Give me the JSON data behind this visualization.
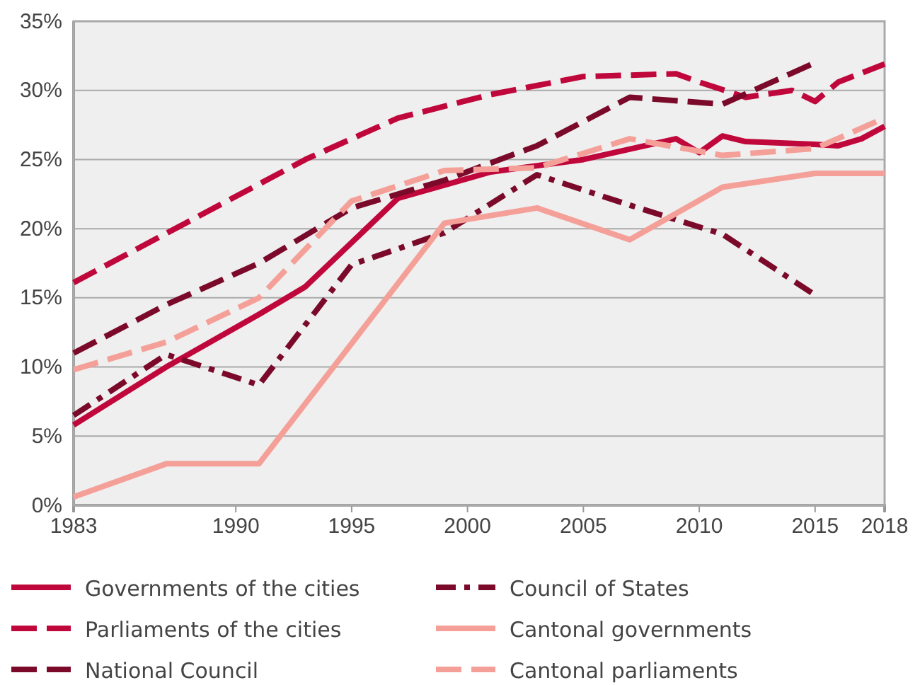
{
  "chart_data": {
    "type": "line",
    "xlim": [
      1983,
      2018
    ],
    "ylim": [
      0,
      35
    ],
    "xticks": [
      1983,
      1990,
      1995,
      2000,
      2005,
      2010,
      2015,
      2018
    ],
    "yticks": [
      {
        "value": 0,
        "label": "0%"
      },
      {
        "value": 5,
        "label": "5%"
      },
      {
        "value": 10,
        "label": "10%"
      },
      {
        "value": 15,
        "label": "15%"
      },
      {
        "value": 20,
        "label": "20%"
      },
      {
        "value": 25,
        "label": "25%"
      },
      {
        "value": 30,
        "label": "30%"
      },
      {
        "value": 35,
        "label": "35%"
      }
    ],
    "grid": "y",
    "legend": "bottom",
    "marker": "none",
    "series": [
      {
        "name": "Governments of the cities",
        "color": "#c0073c",
        "line_style": "solid",
        "x": [
          1983,
          1987,
          1991,
          1993,
          1997,
          2001,
          2005,
          2009,
          2010,
          2011,
          2012,
          2015,
          2016,
          2017,
          2018
        ],
        "values": [
          5.8,
          10,
          13.8,
          15.8,
          22.2,
          24.1,
          25,
          26.5,
          25.5,
          26.7,
          26.3,
          26.1,
          26,
          26.5,
          27.4
        ]
      },
      {
        "name": "Parliaments of the cities",
        "color": "#c0073c",
        "line_style": "dashed",
        "x": [
          1983,
          1993,
          1997,
          2001,
          2005,
          2009,
          2010,
          2012,
          2014,
          2015,
          2016,
          2018
        ],
        "values": [
          16.1,
          25,
          28,
          29.7,
          31,
          31.2,
          30.6,
          29.5,
          30,
          29.2,
          30.6,
          31.9
        ]
      },
      {
        "name": "National Council",
        "color": "#7b0a2a",
        "line_style": "dashed",
        "x": [
          1983,
          1987,
          1991,
          1995,
          1999,
          2003,
          2007,
          2011,
          2015
        ],
        "values": [
          11,
          14.5,
          17.5,
          21.5,
          23.5,
          26,
          29.5,
          29,
          32
        ]
      },
      {
        "name": "Council of States",
        "color": "#7b0a2a",
        "line_style": "dashdot",
        "x": [
          1983,
          1987,
          1991,
          1995,
          1999,
          2003,
          2007,
          2011,
          2015
        ],
        "values": [
          6.5,
          10.9,
          8.7,
          17.4,
          19.7,
          23.9,
          21.7,
          19.6,
          15.2
        ]
      },
      {
        "name": "Cantonal governments",
        "color": "#f4a099",
        "line_style": "solid",
        "x": [
          1983,
          1987,
          1991,
          1999,
          2003,
          2007,
          2011,
          2015,
          2018
        ],
        "values": [
          0.6,
          3,
          3,
          20.4,
          21.5,
          19.2,
          23,
          24,
          24
        ]
      },
      {
        "name": "Cantonal parliaments",
        "color": "#f4a099",
        "line_style": "dashed",
        "x": [
          1983,
          1987,
          1991,
          1995,
          1999,
          2003,
          2007,
          2011,
          2015,
          2018
        ],
        "values": [
          9.8,
          11.8,
          15,
          22,
          24.2,
          24.4,
          26.5,
          25.3,
          25.8,
          28
        ]
      }
    ]
  }
}
